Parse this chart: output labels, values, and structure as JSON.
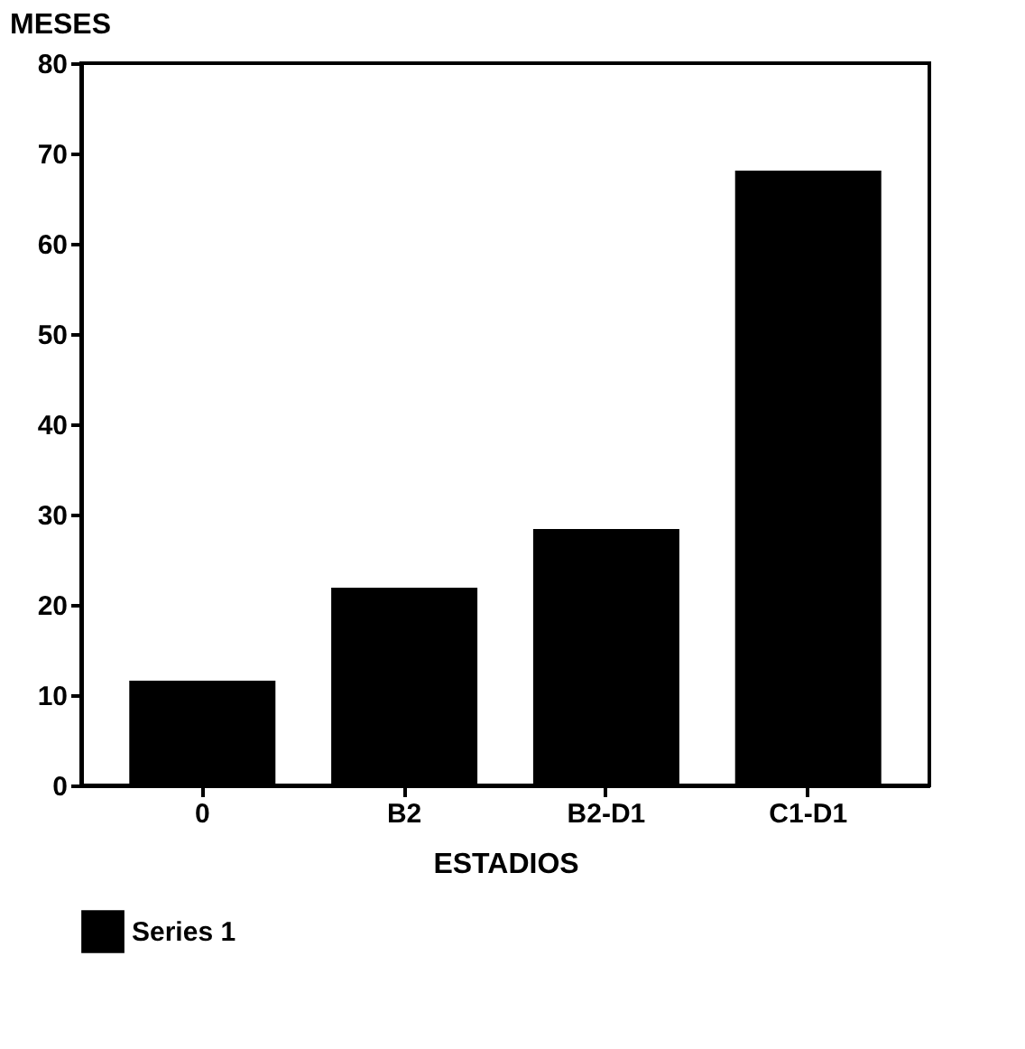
{
  "chart_data": {
    "type": "bar",
    "categories": [
      "0",
      "B2",
      "B2-D1",
      "C1-D1"
    ],
    "series": [
      {
        "name": "Series 1",
        "color": "#000000",
        "values": [
          11.5,
          21.8,
          28.3,
          68
        ]
      }
    ],
    "xlabel": "ESTADIOS",
    "ylabel": "MESES",
    "ylim": [
      0,
      80
    ],
    "yticks": [
      0,
      10,
      20,
      30,
      40,
      50,
      60,
      70,
      80
    ],
    "grid": false,
    "legend": "bottom"
  }
}
